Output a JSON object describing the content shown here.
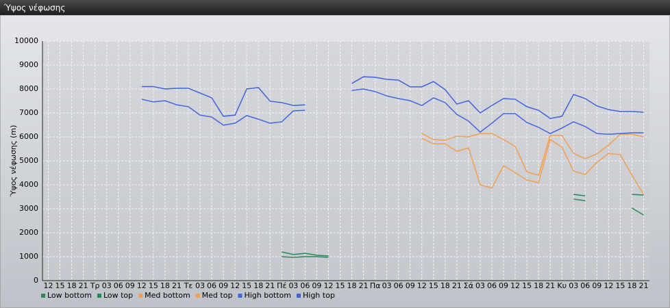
{
  "chart_data": {
    "type": "line",
    "title": "Ύψος νέφωσης",
    "y_label": "Ύψος νέφωσης (m)",
    "categories": [
      "12",
      "15",
      "18",
      "21",
      "Τρ",
      "03",
      "06",
      "09",
      "12",
      "15",
      "18",
      "21",
      "Τε",
      "03",
      "06",
      "09",
      "12",
      "15",
      "18",
      "21",
      "Πέ",
      "03",
      "06",
      "09",
      "12",
      "15",
      "18",
      "21",
      "Πα",
      "03",
      "06",
      "09",
      "12",
      "15",
      "18",
      "21",
      "Σά",
      "03",
      "06",
      "09",
      "12",
      "15",
      "18",
      "21",
      "Κυ",
      "03",
      "06",
      "09",
      "12",
      "15",
      "18",
      "21"
    ],
    "ylim": [
      0,
      10000
    ],
    "yticks": [
      0,
      1000,
      2000,
      3000,
      4000,
      5000,
      6000,
      7000,
      8000,
      9000,
      10000
    ],
    "grid": true,
    "series": [
      {
        "name": "Low bottom",
        "color": "#2e8b57",
        "values": [
          null,
          null,
          null,
          null,
          null,
          null,
          null,
          null,
          null,
          null,
          null,
          null,
          null,
          null,
          null,
          null,
          null,
          null,
          null,
          null,
          1000,
          970,
          1000,
          1000,
          970,
          null,
          null,
          null,
          null,
          null,
          null,
          null,
          null,
          null,
          null,
          null,
          null,
          null,
          null,
          null,
          null,
          null,
          null,
          null,
          null,
          3400,
          3340,
          null,
          null,
          null,
          3030,
          2740
        ]
      },
      {
        "name": "Low top",
        "color": "#1f8a5a",
        "values": [
          null,
          null,
          null,
          null,
          null,
          null,
          null,
          null,
          null,
          null,
          null,
          null,
          null,
          null,
          null,
          null,
          null,
          null,
          null,
          null,
          1200,
          1090,
          1140,
          1060,
          1030,
          null,
          null,
          null,
          null,
          null,
          null,
          null,
          null,
          null,
          null,
          null,
          null,
          null,
          null,
          null,
          null,
          null,
          null,
          null,
          null,
          3600,
          3540,
          null,
          null,
          null,
          3600,
          3570
        ]
      },
      {
        "name": "Med bottom",
        "color": "#f0a050",
        "values": [
          null,
          null,
          null,
          null,
          null,
          null,
          null,
          null,
          null,
          null,
          null,
          null,
          null,
          null,
          null,
          null,
          null,
          null,
          null,
          null,
          null,
          null,
          null,
          null,
          null,
          null,
          null,
          null,
          null,
          null,
          null,
          null,
          5940,
          5710,
          5710,
          5400,
          5540,
          4000,
          3860,
          4800,
          4510,
          4200,
          4090,
          5890,
          5570,
          4570,
          4430,
          4940,
          5310,
          5260,
          4400,
          3600
        ]
      },
      {
        "name": "Med top",
        "color": "#f2a04a",
        "values": [
          null,
          null,
          null,
          null,
          null,
          null,
          null,
          null,
          null,
          null,
          null,
          null,
          null,
          null,
          null,
          null,
          null,
          null,
          null,
          null,
          null,
          null,
          null,
          null,
          null,
          null,
          null,
          null,
          null,
          null,
          null,
          null,
          6140,
          5890,
          5860,
          6030,
          6000,
          6140,
          6140,
          5890,
          5600,
          4540,
          4400,
          6060,
          6060,
          5310,
          5090,
          5290,
          5660,
          6110,
          6110,
          6000
        ]
      },
      {
        "name": "High bottom",
        "color": "#4466dd",
        "values": [
          null,
          null,
          null,
          null,
          null,
          null,
          null,
          null,
          7570,
          7460,
          7510,
          7340,
          7260,
          6910,
          6830,
          6490,
          6570,
          6890,
          6740,
          6570,
          6630,
          7090,
          7110,
          null,
          null,
          null,
          7940,
          8000,
          7890,
          7710,
          7600,
          7510,
          7310,
          7630,
          7430,
          6940,
          6660,
          6200,
          6570,
          6970,
          6970,
          6600,
          6400,
          6140,
          6370,
          6630,
          6430,
          6140,
          6110,
          6140,
          6170,
          6170
        ]
      },
      {
        "name": "High top",
        "color": "#3f62d8",
        "values": [
          null,
          null,
          null,
          null,
          null,
          null,
          null,
          null,
          8100,
          8100,
          8000,
          8030,
          8030,
          7830,
          7630,
          6860,
          6910,
          8000,
          8060,
          7490,
          7430,
          7310,
          7340,
          null,
          null,
          null,
          8230,
          8510,
          8490,
          8400,
          8370,
          8090,
          8090,
          8310,
          7970,
          7370,
          7510,
          7000,
          7310,
          7600,
          7570,
          7260,
          7110,
          6770,
          6860,
          7770,
          7600,
          7290,
          7140,
          7060,
          7060,
          7030
        ]
      }
    ]
  }
}
